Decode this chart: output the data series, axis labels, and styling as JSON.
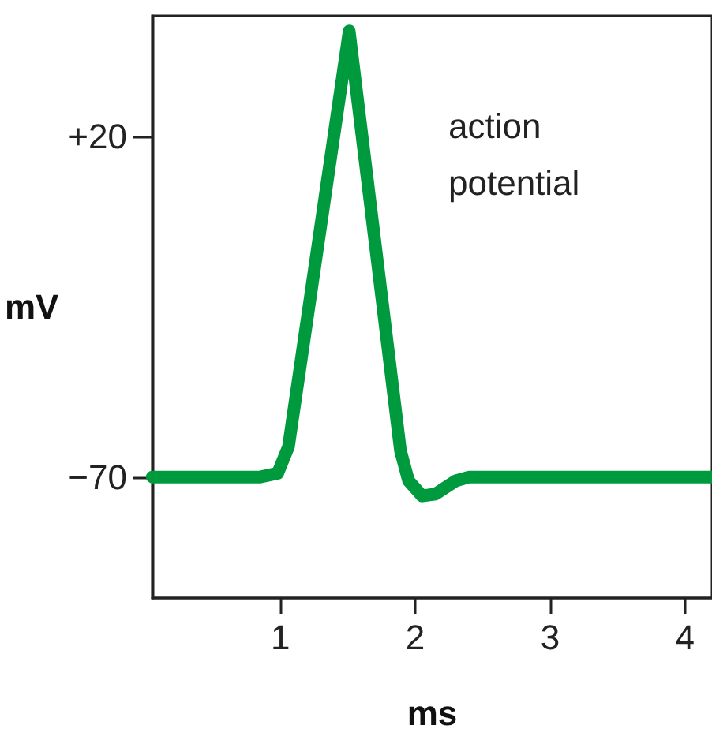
{
  "chart_data": {
    "type": "line",
    "xlabel": "ms",
    "ylabel": "mV",
    "annotations": [
      "action potential"
    ],
    "x": [
      0.05,
      0.85,
      0.98,
      1.06,
      1.51,
      1.89,
      1.95,
      2.05,
      2.15,
      2.3,
      2.4,
      4.2
    ],
    "series": [
      {
        "color": "#009a3e",
        "values": [
          -70,
          -70,
          -69,
          -62,
          48,
          -63,
          -71,
          -75,
          -74.5,
          -71,
          -70,
          -70
        ]
      }
    ],
    "xlim": [
      0.05,
      4.2
    ],
    "ylim": [
      -102,
      52
    ],
    "xticks": [
      1,
      2,
      3,
      4
    ],
    "yticks": [
      {
        "value": 20,
        "label": "+20"
      },
      {
        "value": -70,
        "label": "−70"
      }
    ],
    "grid": false,
    "line_style": "solid"
  }
}
